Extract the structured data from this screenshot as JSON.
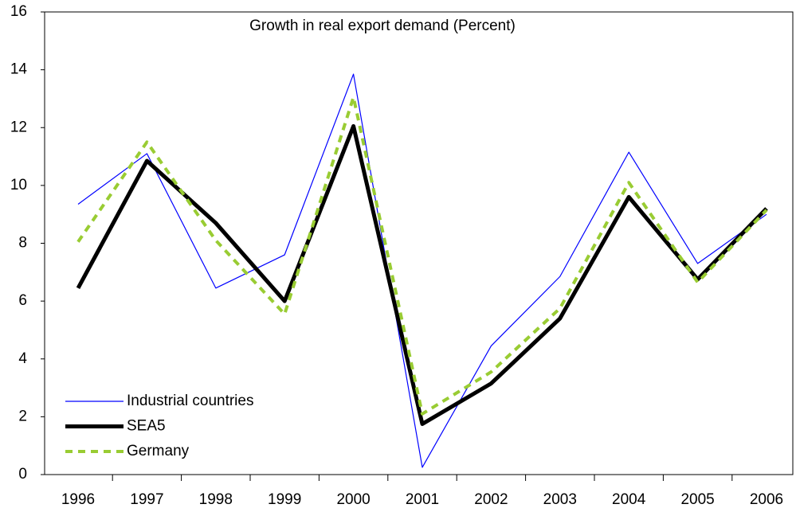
{
  "chart_data": {
    "type": "line",
    "title": "Growth in real export demand (Percent)",
    "categories": [
      "1996",
      "1997",
      "1998",
      "1999",
      "2000",
      "2001",
      "2002",
      "2003",
      "2004",
      "2005",
      "2006"
    ],
    "series": [
      {
        "name": "Industrial countries",
        "color": "#0000ff",
        "values": [
          9.35,
          11.1,
          6.45,
          7.6,
          13.85,
          0.25,
          4.45,
          6.85,
          11.15,
          7.3,
          9.0
        ]
      },
      {
        "name": "SEA5",
        "color": "#000000",
        "values": [
          6.45,
          10.85,
          8.7,
          6.0,
          12.05,
          1.75,
          3.15,
          5.4,
          9.6,
          6.75,
          9.2
        ]
      },
      {
        "name": "Germany",
        "color": "#99cc33",
        "values": [
          8.05,
          11.5,
          8.1,
          5.55,
          13.05,
          2.1,
          3.55,
          5.75,
          10.1,
          6.65,
          9.15
        ]
      }
    ],
    "ylim": [
      0,
      16
    ],
    "yticks": [
      0,
      2,
      4,
      6,
      8,
      10,
      12,
      14,
      16
    ],
    "grid": false,
    "legend": "lower left"
  }
}
